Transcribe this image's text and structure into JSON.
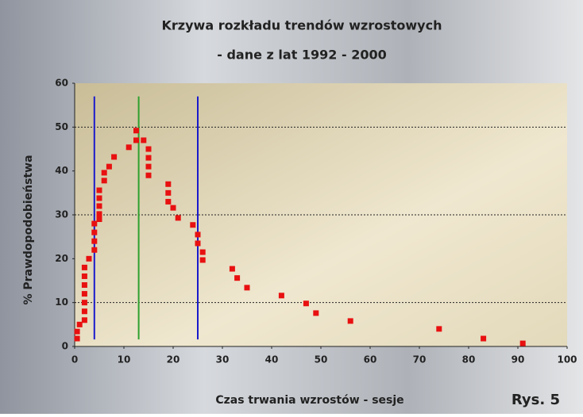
{
  "chart_data": {
    "type": "scatter",
    "title": "Krzywa rozkładu trendów wzrostowych",
    "subtitle": "- dane z lat 1992 - 2000",
    "x_label": "Czas trwania wzrostów - sesje",
    "y_label": "% Prawdopodobieństwa",
    "annotation": "Rys. 5",
    "xlim": [
      0,
      100
    ],
    "xticks": [
      0,
      10,
      20,
      30,
      40,
      50,
      60,
      70,
      80,
      90,
      100
    ],
    "ylim": [
      0,
      60
    ],
    "yticks": [
      0,
      10,
      20,
      30,
      40,
      50,
      60
    ],
    "hgrid": [
      10,
      30,
      50
    ],
    "vlines": [
      {
        "value": 4,
        "color": "#1a1acc"
      },
      {
        "value": 13,
        "color": "#2ea02e"
      },
      {
        "value": 25,
        "color": "#1a1acc"
      }
    ],
    "vline_range": [
      1.6,
      57
    ],
    "series": [
      {
        "color": "#e81010",
        "x": [
          0.5,
          0.5,
          1,
          2,
          2,
          2,
          2,
          2,
          2,
          2,
          2.9,
          4,
          4,
          4,
          4,
          5,
          5,
          5,
          5,
          5,
          6,
          6,
          7,
          8,
          11,
          12.5,
          12.5,
          14,
          15,
          15,
          15,
          15,
          19,
          19,
          19,
          20,
          21,
          24,
          25,
          25,
          26,
          26,
          32,
          33,
          35,
          42,
          47,
          49,
          56,
          74,
          83,
          91
        ],
        "values": [
          1.8,
          3.4,
          5,
          6,
          8,
          10,
          12,
          14,
          16,
          18,
          20,
          22,
          24,
          26,
          28,
          29,
          30.2,
          32,
          33.8,
          35.6,
          37.8,
          39.6,
          41,
          43.2,
          45.4,
          49.2,
          47,
          47,
          45,
          43,
          41,
          39,
          37,
          35,
          33,
          31.6,
          29.3,
          27.7,
          25.5,
          23.5,
          21.5,
          19.7,
          17.7,
          15.6,
          13.4,
          11.6,
          9.8,
          7.6,
          5.8,
          4,
          1.8,
          0.7
        ]
      }
    ]
  }
}
